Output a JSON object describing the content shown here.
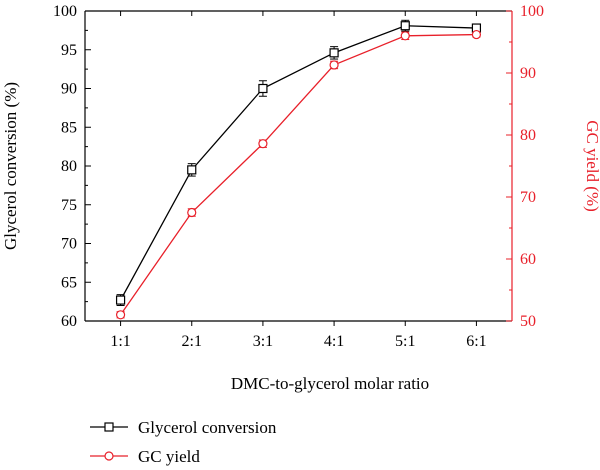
{
  "chart_data": {
    "type": "line",
    "xlabel": "DMC-to-glycerol molar ratio",
    "categories": [
      "1:1",
      "2:1",
      "3:1",
      "4:1",
      "5:1",
      "6:1"
    ],
    "left_axis": {
      "label": "Glycerol conversion (%)",
      "ylim": [
        60,
        100
      ],
      "ticks": [
        60,
        65,
        70,
        75,
        80,
        85,
        90,
        95,
        100
      ],
      "color": "#000000"
    },
    "right_axis": {
      "label": "GC yield (%)",
      "ylim": [
        50,
        100
      ],
      "ticks": [
        50,
        60,
        70,
        80,
        90,
        100
      ],
      "color": "#e8202a"
    },
    "series": [
      {
        "name": "Glycerol conversion",
        "axis": "left",
        "color": "#000000",
        "marker": "square",
        "values": [
          62.7,
          79.5,
          90.0,
          94.6,
          98.1,
          97.8
        ],
        "errors": [
          0.7,
          0.8,
          1.0,
          0.8,
          0.7,
          0.4
        ]
      },
      {
        "name": "GC yield",
        "axis": "right",
        "color": "#e8202a",
        "marker": "circle",
        "values": [
          51.0,
          67.5,
          78.6,
          91.3,
          96.0,
          96.2
        ],
        "errors": [
          0.5,
          0.6,
          0.6,
          0.6,
          0.6,
          0.4
        ]
      }
    ],
    "legend": "bottom-left",
    "grid": false
  }
}
